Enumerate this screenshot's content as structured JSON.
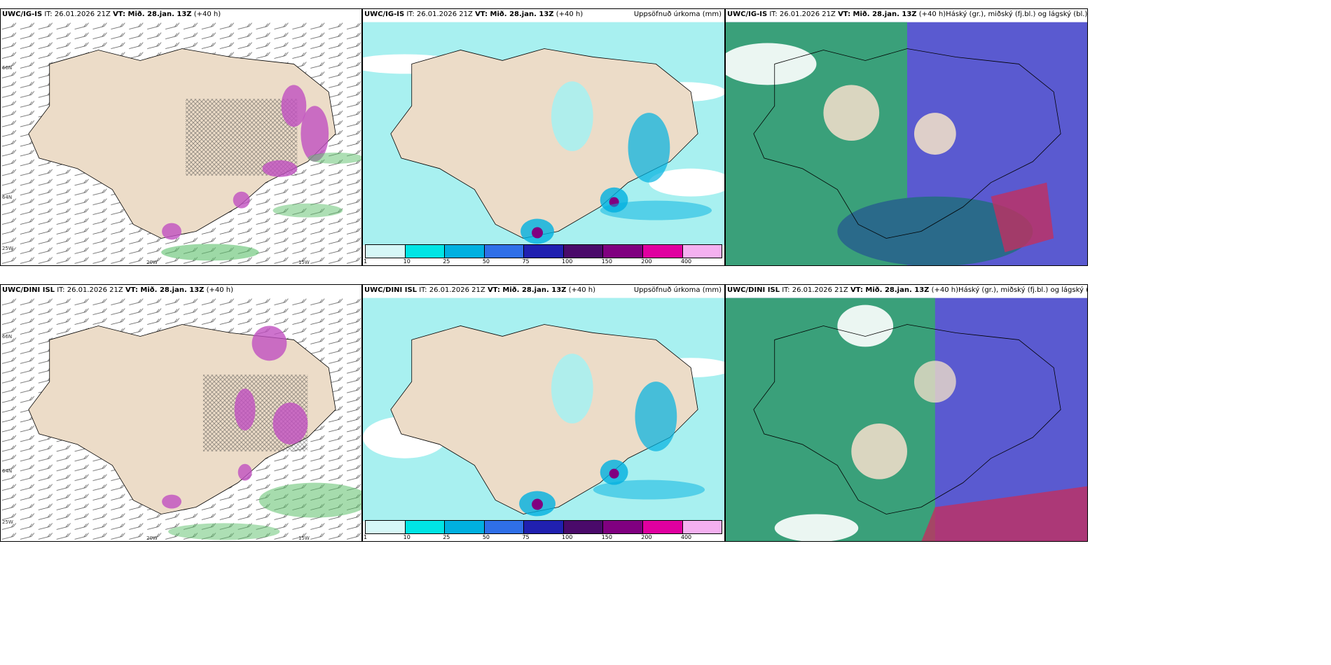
{
  "rows": [
    {
      "panels": [
        {
          "model": "UWC/IG-IS",
          "it": "IT: 26.01.2026 21Z",
          "vt": "VT: Mið. 28.jan. 13Z",
          "lead": "(+40 h)",
          "right": ""
        },
        {
          "model": "UWC/IG-IS",
          "it": "IT: 26.01.2026 21Z",
          "vt": "VT: Mið. 28.jan. 13Z",
          "lead": "(+40 h)",
          "right": "Uppsöfnuð úrkoma (mm)"
        },
        {
          "model": "UWC/IG-IS",
          "it": "IT: 26.01.2026 21Z",
          "vt": "VT: Mið. 28.jan. 13Z",
          "lead": "(+40 h)",
          "right": "Háský (gr.), miðský (fj.bl.) og lágský (bl.)"
        }
      ]
    },
    {
      "panels": [
        {
          "model": "UWC/DINI ISL",
          "it": "IT: 26.01.2026 21Z",
          "vt": "VT: Mið. 28.jan. 13Z",
          "lead": "(+40 h)",
          "right": ""
        },
        {
          "model": "UWC/DINI ISL",
          "it": "IT: 26.01.2026 21Z",
          "vt": "VT: Mið. 28.jan. 13Z",
          "lead": "(+40 h)",
          "right": "Uppsöfnuð úrkoma (mm)"
        },
        {
          "model": "UWC/DINI ISL",
          "it": "IT: 26.01.2026 21Z",
          "vt": "VT: Mið. 28.jan. 13Z",
          "lead": "(+40 h)",
          "right": "Háský (gr.), miðský (fj.bl.) og lágský (bl.)"
        }
      ]
    }
  ],
  "grid_labels": {
    "lat66": "66N",
    "lat64": "64N",
    "lon20": "20W",
    "lon15": "15W",
    "lon25": "25W"
  },
  "legend": {
    "ticks": [
      "1",
      "10",
      "25",
      "50",
      "75",
      "100",
      "150",
      "200",
      "400"
    ],
    "colors": [
      "#d6f7f7",
      "#00e5e5",
      "#00b0e0",
      "#2f6fe8",
      "#2020b0",
      "#4a0a6a",
      "#800080",
      "#e000a0",
      "#f4b0f0"
    ]
  },
  "colors": {
    "land": "#ecdcc8",
    "sea_precip": "#a8f0f0",
    "high_cloud": "#5a5ad0",
    "mid_cloud": "#3aa07a",
    "low_cloud": "#2a6a8a",
    "snow": "#c050c0",
    "rain": "#5cbf6a"
  }
}
